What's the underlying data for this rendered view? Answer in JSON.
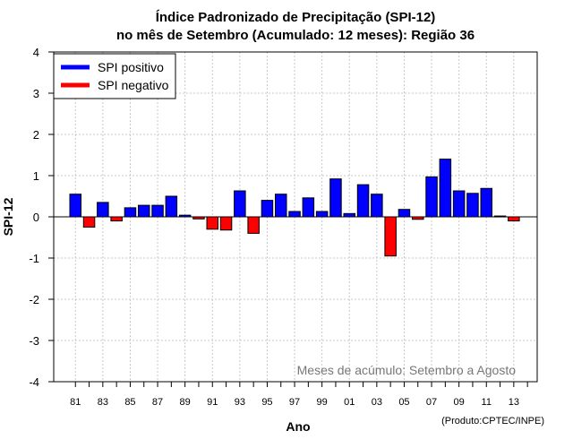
{
  "chart_data": {
    "type": "bar",
    "title": "Índice Padronizado de Precipitação (SPI-12)",
    "subtitle": "no mês de Setembro (Acumulado: 12 meses): Região 36",
    "xlabel": "Ano",
    "ylabel": "SPI-12",
    "ylim": [
      -4,
      4
    ],
    "yticks": [
      "-4",
      "-3",
      "-2",
      "-1",
      "0",
      "1",
      "2",
      "3",
      "4"
    ],
    "xtick_labels": [
      "81",
      "83",
      "85",
      "87",
      "89",
      "91",
      "93",
      "95",
      "97",
      "99",
      "01",
      "03",
      "05",
      "07",
      "09",
      "11",
      "13"
    ],
    "categories": [
      "1981",
      "1982",
      "1983",
      "1984",
      "1985",
      "1986",
      "1987",
      "1988",
      "1989",
      "1990",
      "1991",
      "1992",
      "1993",
      "1994",
      "1995",
      "1996",
      "1997",
      "1998",
      "1999",
      "2000",
      "2001",
      "2002",
      "2003",
      "2004",
      "2005",
      "2006",
      "2007",
      "2008",
      "2009",
      "2010",
      "2011",
      "2012",
      "2013"
    ],
    "values": [
      0.55,
      -0.25,
      0.35,
      -0.1,
      0.22,
      0.28,
      0.28,
      0.5,
      0.04,
      -0.05,
      -0.3,
      -0.32,
      0.63,
      -0.4,
      0.4,
      0.55,
      0.13,
      0.46,
      0.13,
      0.92,
      0.08,
      0.78,
      0.55,
      -0.95,
      0.18,
      -0.06,
      0.97,
      1.4,
      0.63,
      0.57,
      0.69,
      0.02,
      -0.1
    ],
    "legend": [
      {
        "label": "SPI positivo",
        "color": "#0000ff"
      },
      {
        "label": "SPI negativo",
        "color": "#ff0000"
      }
    ],
    "legend_position": "top-left",
    "grid": true,
    "annotation": "Meses de acúmulo: Setembro a Agosto",
    "credit": "(Produto:CPTEC/INPE)"
  }
}
